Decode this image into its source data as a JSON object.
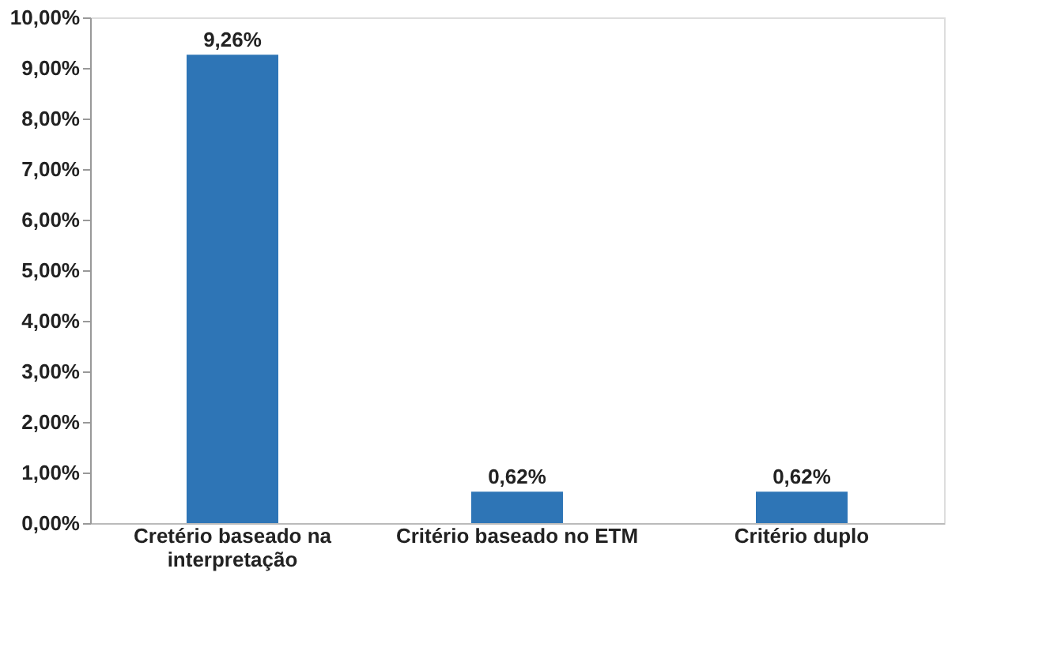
{
  "chart_data": {
    "type": "bar",
    "categories": [
      "Cretério baseado na interpretação",
      "Critério baseado no ETM",
      "Critério duplo"
    ],
    "values": [
      9.26,
      0.62,
      0.62
    ],
    "color": "#2e75b6",
    "value_labels": [
      "9,26%",
      "0,62%",
      "0,62%"
    ],
    "ylim": [
      0,
      10
    ],
    "yticks": [
      {
        "value": 0,
        "label": "0,00%"
      },
      {
        "value": 1,
        "label": "1,00%"
      },
      {
        "value": 2,
        "label": "2,00%"
      },
      {
        "value": 3,
        "label": "3,00%"
      },
      {
        "value": 4,
        "label": "4,00%"
      },
      {
        "value": 5,
        "label": "5,00%"
      },
      {
        "value": 6,
        "label": "6,00%"
      },
      {
        "value": 7,
        "label": "7,00%"
      },
      {
        "value": 8,
        "label": "8,00%"
      },
      {
        "value": 9,
        "label": "9,00%"
      },
      {
        "value": 10,
        "label": "10,00%"
      }
    ],
    "grid": false
  }
}
